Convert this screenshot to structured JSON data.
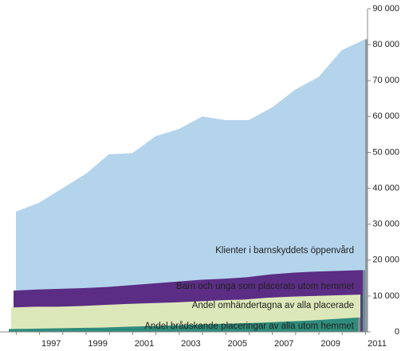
{
  "chart_data": {
    "type": "area",
    "categories": [
      null,
      "1997",
      null,
      "1999",
      null,
      "2001",
      null,
      "2003",
      null,
      "2005",
      null,
      "2007",
      null,
      "2009",
      null,
      "2011"
    ],
    "series": [
      {
        "name": "Klienter i barnskyddets öppenvård",
        "color": "#b4d4ec",
        "values": [
          33500,
          36000,
          40000,
          44000,
          49500,
          49800,
          54500,
          56500,
          60000,
          59000,
          59000,
          62500,
          67500,
          71000,
          78500,
          81500
        ]
      },
      {
        "name": "Barn och unga som placerats utom hemmet",
        "color": "#5b2d84",
        "values": [
          11500,
          11800,
          12000,
          12200,
          12500,
          13000,
          13500,
          14000,
          14500,
          14800,
          15200,
          16000,
          16500,
          16800,
          17000,
          17200
        ]
      },
      {
        "name": "Andel omhändertagna av alla placerade",
        "color": "#dde8ba",
        "values": [
          6800,
          7000,
          7000,
          7200,
          7500,
          7800,
          8000,
          8200,
          8500,
          8800,
          9000,
          9500,
          9800,
          10000,
          10200,
          10400
        ]
      },
      {
        "name": "Andel brådskande placeringar av alla utom hemmet",
        "color": "#2f8c7c",
        "values": [
          800,
          900,
          1000,
          1100,
          1200,
          1400,
          1600,
          1800,
          2000,
          2200,
          2400,
          2600,
          2900,
          3200,
          3600,
          4000
        ]
      }
    ],
    "ylim": [
      0,
      90000
    ],
    "yticks": [
      {
        "value": 0,
        "label": "0"
      },
      {
        "value": 10000,
        "label": "10 000"
      },
      {
        "value": 20000,
        "label": "20 000"
      },
      {
        "value": 30000,
        "label": "30 000"
      },
      {
        "value": 40000,
        "label": "40 000"
      },
      {
        "value": 50000,
        "label": "50 000"
      },
      {
        "value": 60000,
        "label": "60 000"
      },
      {
        "value": 70000,
        "label": "70 000"
      },
      {
        "value": 80000,
        "label": "80 000"
      },
      {
        "value": 90000,
        "label": "90 000"
      }
    ]
  }
}
